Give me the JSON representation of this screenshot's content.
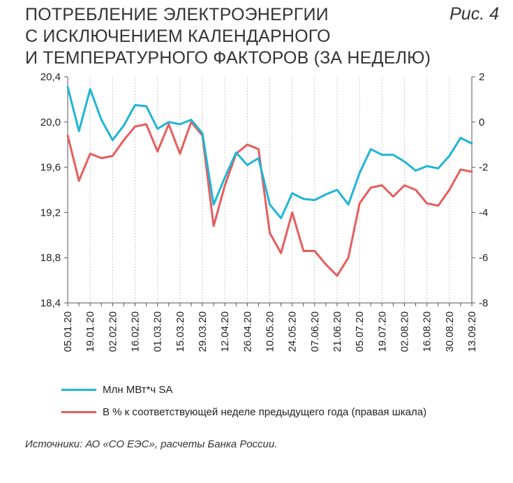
{
  "header": {
    "title": "ПОТРЕБЛЕНИЕ ЭЛЕКТРОЭНЕРГИИ\nС ИСКЛЮЧЕНИЕМ КАЛЕНДАРНОГО\nИ ТЕМПЕРАТУРНОГО ФАКТОРОВ (ЗА НЕДЕЛЮ)",
    "figure_label": "Рис. 4"
  },
  "footer": {
    "source": "Источники: АО «СО ЕЭС», расчеты Банка России."
  },
  "chart_data": {
    "type": "line",
    "title": "ПОТРЕБЛЕНИЕ ЭЛЕКТРОЭНЕРГИИ С ИСКЛЮЧЕНИЕМ КАЛЕНДАРНОГО И ТЕМПЕРАТУРНОГО ФАКТОРОВ (ЗА НЕДЕЛЮ)",
    "x": [
      "05.01.20",
      "12.01.20",
      "19.01.20",
      "26.01.20",
      "02.02.20",
      "09.02.20",
      "16.02.20",
      "23.02.20",
      "01.03.20",
      "08.03.20",
      "15.03.20",
      "22.03.20",
      "29.03.20",
      "05.04.20",
      "12.04.20",
      "19.04.20",
      "26.04.20",
      "03.05.20",
      "10.05.20",
      "17.05.20",
      "24.05.20",
      "31.05.20",
      "07.06.20",
      "14.06.20",
      "21.06.20",
      "28.06.20",
      "05.07.20",
      "12.07.20",
      "19.07.20",
      "26.07.20",
      "02.08.20",
      "09.08.20",
      "16.08.20",
      "23.08.20",
      "30.08.20",
      "06.09.20",
      "13.09.20"
    ],
    "x_tick_labels": [
      "05.01.20",
      "19.01.20",
      "02.02.20",
      "16.02.20",
      "01.03.20",
      "15.03.20",
      "29.03.20",
      "12.04.20",
      "26.04.20",
      "10.05.20",
      "24.05.20",
      "07.06.20",
      "21.06.20",
      "05.07.20",
      "19.07.20",
      "02.08.20",
      "16.08.20",
      "30.08.20",
      "13.09.20"
    ],
    "left_axis": {
      "ylim": [
        18.4,
        20.4
      ],
      "ticks": [
        "18,4",
        "18,8",
        "19,2",
        "19,6",
        "20,0",
        "20,4"
      ]
    },
    "right_axis": {
      "ylim": [
        -8,
        2
      ],
      "ticks": [
        "-8",
        "-6",
        "-4",
        "-2",
        "0",
        "2"
      ]
    },
    "grid": "vertical",
    "legend_position": "bottom",
    "series": [
      {
        "name": "Млн МВт*ч SA",
        "axis": "left",
        "color": "#1fb5d6",
        "values": [
          20.31,
          19.92,
          20.29,
          20.02,
          19.84,
          19.97,
          20.15,
          20.14,
          19.94,
          20.0,
          19.98,
          20.02,
          19.9,
          19.27,
          19.51,
          19.73,
          19.62,
          19.68,
          19.27,
          19.15,
          19.37,
          19.32,
          19.31,
          19.36,
          19.4,
          19.27,
          19.55,
          19.76,
          19.71,
          19.71,
          19.65,
          19.57,
          19.61,
          19.59,
          19.7,
          19.86,
          19.81
        ]
      },
      {
        "name": "В % к соответствующей неделе предыдущего года (правая шкала)",
        "axis": "right",
        "color": "#e85c5c",
        "values": [
          -0.6,
          -2.6,
          -1.4,
          -1.6,
          -1.5,
          -0.8,
          -0.2,
          -0.1,
          -1.3,
          -0.1,
          -1.4,
          0.0,
          -0.6,
          -4.6,
          -2.8,
          -1.4,
          -1.0,
          -1.2,
          -4.9,
          -5.8,
          -4.0,
          -5.7,
          -5.7,
          -6.3,
          -6.8,
          -6.0,
          -3.6,
          -2.9,
          -2.8,
          -3.3,
          -2.8,
          -3.0,
          -3.6,
          -3.7,
          -3.0,
          -2.1,
          -2.2
        ]
      }
    ]
  }
}
